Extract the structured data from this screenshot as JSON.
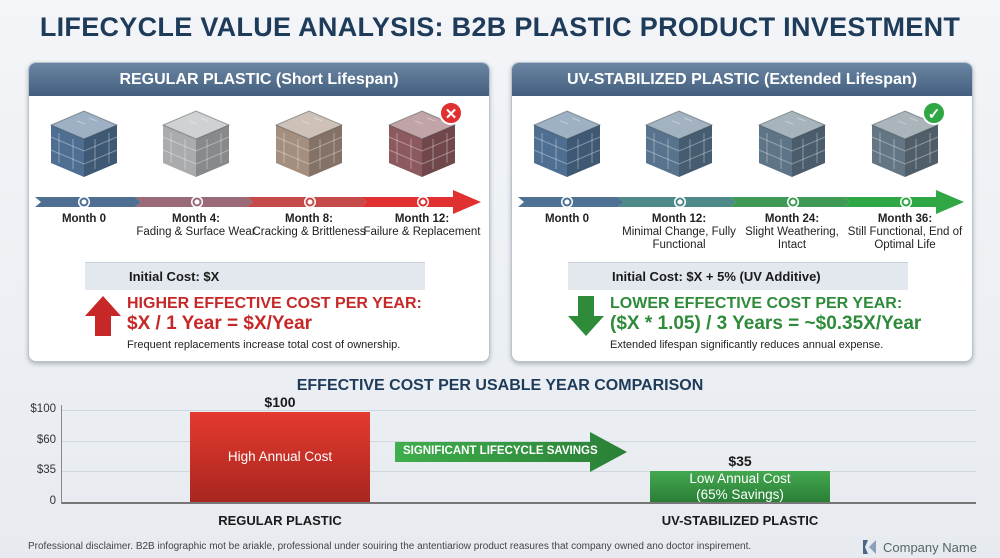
{
  "title": "LIFECYCLE VALUE ANALYSIS: B2B PLASTIC PRODUCT INVESTMENT",
  "colors": {
    "navy": "#1f3b5a",
    "red": "#c62828",
    "green": "#2e8b3a",
    "slate": "#4a6686"
  },
  "panels": [
    {
      "header": "REGULAR PLASTIC (Short Lifespan)",
      "stages": [
        {
          "label": "Month 0",
          "desc": "",
          "crate_color": "#4f6f92",
          "status_icon": ""
        },
        {
          "label": "Month 4:",
          "desc": "Fading & Surface Wear",
          "crate_color": "#a9abad",
          "status_icon": ""
        },
        {
          "label": "Month 8:",
          "desc": "Cracking & Brittleness",
          "crate_color": "#a48e7e",
          "status_icon": ""
        },
        {
          "label": "Month 12:",
          "desc": "Failure & Replacement",
          "crate_color": "#8c5a5e",
          "status_icon": "x-circle-icon"
        }
      ],
      "initial_cost": "Initial Cost: $X",
      "trend_icon": "arrow-up-icon",
      "effective_heading": "HIGHER EFFECTIVE COST PER YEAR:",
      "effective_formula": "$X / 1 Year = $X/Year",
      "note": "Frequent replacements increase total cost of ownership."
    },
    {
      "header": "UV-STABILIZED PLASTIC (Extended Lifespan)",
      "stages": [
        {
          "label": "Month 0",
          "desc": "",
          "crate_color": "#4f6f92",
          "status_icon": ""
        },
        {
          "label": "Month 12:",
          "desc": "Minimal Change, Fully Functional",
          "crate_color": "#58738d",
          "status_icon": ""
        },
        {
          "label": "Month 24:",
          "desc": "Slight Weathering, Intact",
          "crate_color": "#5e7487",
          "status_icon": ""
        },
        {
          "label": "Month 36:",
          "desc": "Still Functional, End of Optimal Life",
          "crate_color": "#647684",
          "status_icon": "check-circle-icon"
        }
      ],
      "initial_cost": "Initial Cost: $X + 5% (UV Additive)",
      "trend_icon": "arrow-down-icon",
      "effective_heading": "LOWER EFFECTIVE COST PER YEAR:",
      "effective_formula": "($X * 1.05) / 3 Years = ~$0.35X/Year",
      "note": "Extended lifespan significantly reduces annual expense."
    }
  ],
  "chart_data": {
    "type": "bar",
    "title": "EFFECTIVE COST PER USABLE YEAR COMPARISON",
    "categories": [
      "REGULAR PLASTIC",
      "UV-STABILIZED PLASTIC"
    ],
    "values": [
      100,
      35
    ],
    "value_labels": [
      "$100",
      "$35"
    ],
    "bar_labels": [
      "High Annual Cost",
      "Low Annual Cost (65% Savings)"
    ],
    "bar_colors": [
      "#c62828",
      "#2e8b3a"
    ],
    "y_ticks": [
      "$100",
      "$60",
      "$35",
      "0"
    ],
    "ylim": [
      0,
      100
    ],
    "grid": true,
    "annotation": "SIGNIFICANT LIFECYCLE SAVINGS"
  },
  "footer": {
    "disclaimer": "Professional disclaimer. B2B infographic mot be ariakle, professional under souiring the antentiariow product reasures that company owned ano doctor inspirement.",
    "company": "Company Name"
  }
}
